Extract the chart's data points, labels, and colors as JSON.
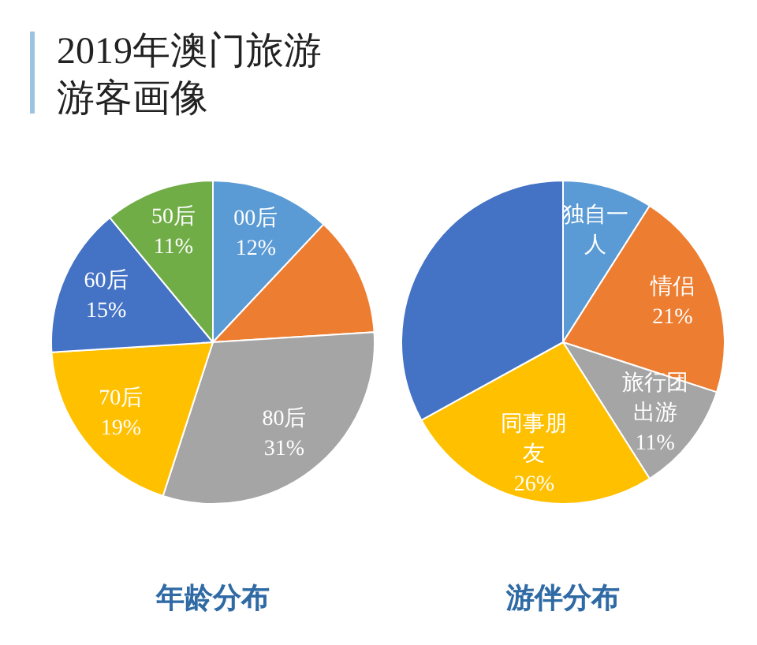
{
  "chart_data": [
    {
      "type": "other",
      "title": "2019年澳门旅游游客画像"
    },
    {
      "type": "pie",
      "title": "年龄分布",
      "categories": [
        "00后",
        null,
        "80后",
        "70后",
        "60后",
        "50后"
      ],
      "values": [
        12,
        12,
        31,
        19,
        15,
        11
      ],
      "value_labels": [
        "12%",
        null,
        "31%",
        "19%",
        "15%",
        "11%"
      ],
      "colors": [
        "#5b9bd5",
        "#ed7d31",
        "#a5a5a5",
        "#ffc000",
        "#4472c4",
        "#70ad47"
      ]
    },
    {
      "type": "pie",
      "title": "游伴分布",
      "categories": [
        "独自一人",
        "情侣",
        "旅行团出游",
        "同事朋友",
        null
      ],
      "values": [
        9,
        21,
        11,
        26,
        33
      ],
      "value_labels": [
        null,
        "21%",
        "11%",
        "26%",
        null
      ],
      "colors": [
        "#5b9bd5",
        "#ed7d31",
        "#a5a5a5",
        "#ffc000",
        "#4472c4"
      ]
    }
  ]
}
